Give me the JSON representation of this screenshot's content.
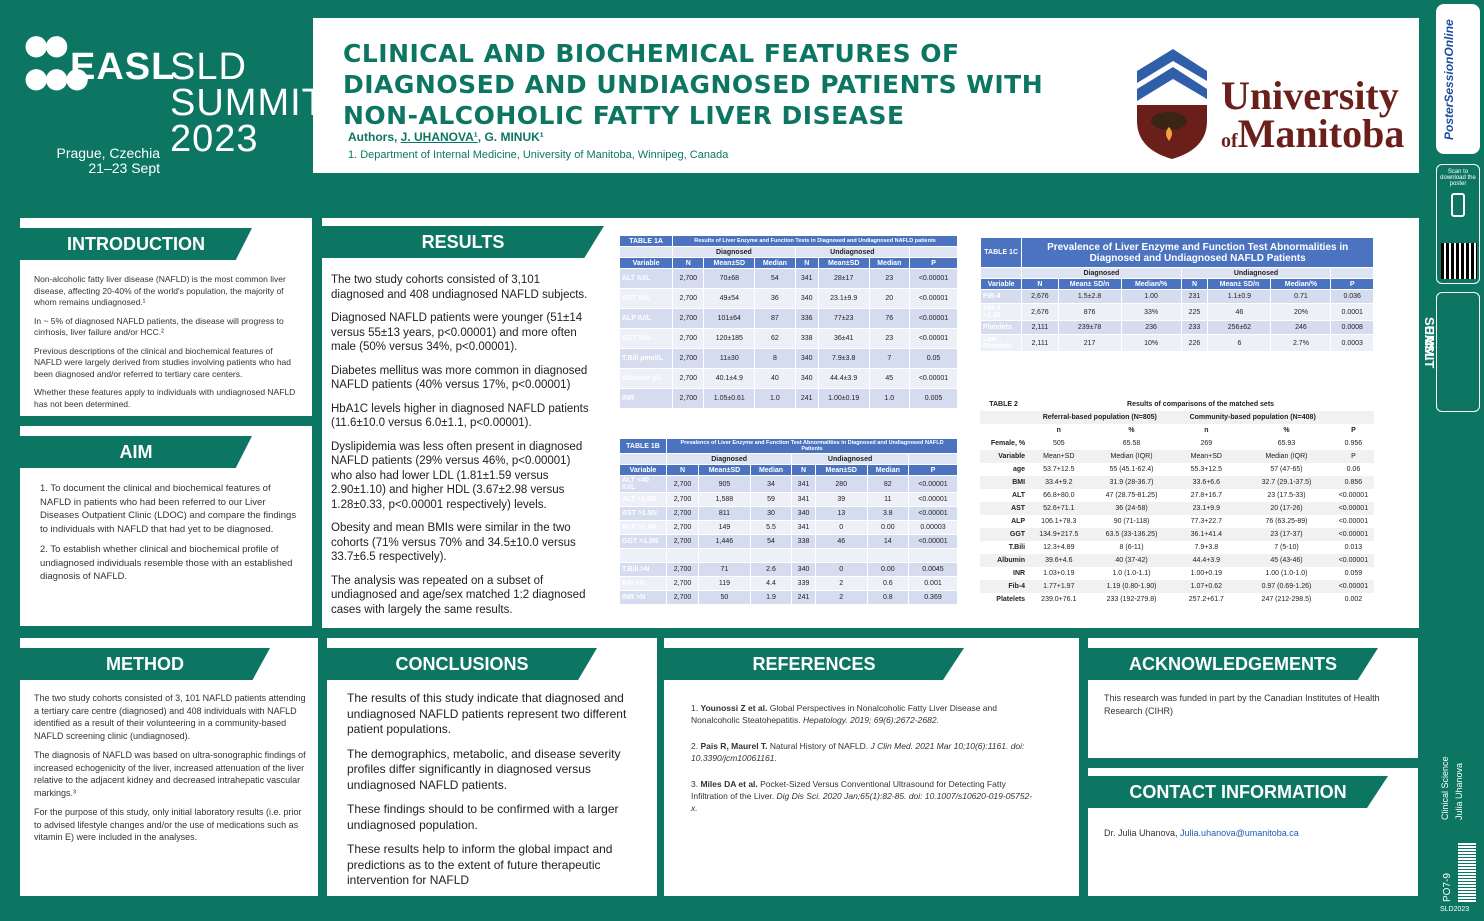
{
  "logo": {
    "word1": "EASL",
    "word2": "SLD",
    "word3": "SUMMIT",
    "year": "2023",
    "city": "Prague, Czechia",
    "dates": "21–23 Sept"
  },
  "header": {
    "title": "CLINICAL AND BIOCHEMICAL FEATURES OF DIAGNOSED AND UNDIAGNOSED PATIENTS WITH NON-ALCOHOLIC FATTY LIVER DISEASE",
    "authors_prefix": "Authors, ",
    "author1": "J. UHANOVA¹",
    "author_sep": ", ",
    "author2": "G. MINUK¹",
    "affiliation": "1. Department of Internal Medicine, University of Manitoba, Winnipeg, Canada",
    "uni_line1": "University",
    "uni_of": "of",
    "uni_line2": "Manitoba"
  },
  "side": {
    "brand": "PosterSessionOnline",
    "scan": "Scan to download the poster",
    "easl": "EASL",
    "summit": "SUMMIT",
    "category": "Clinical Science",
    "author": "Julia Uhanova",
    "code": "PO7-9",
    "event": "SLD2023"
  },
  "intro": {
    "heading": "INTRODUCTION",
    "p1": "Non-alcoholic fatty liver disease (NAFLD) is the most common liver disease, affecting 20-40% of the world's population, the majority of whom remains undiagnosed.¹",
    "p2": "In ~ 5% of diagnosed NAFLD patients, the disease will progress to cirrhosis, liver failure and/or HCC.²",
    "p3": "Previous descriptions of the clinical and biochemical features of NAFLD were largely derived from studies involving patients who had been diagnosed and/or referred to tertiary care centers.",
    "p4": "Whether these features apply to individuals with undiagnosed NAFLD has not been determined."
  },
  "aim": {
    "heading": "AIM",
    "p1": "1. To document the clinical and biochemical features of NAFLD in patients who had been referred to our Liver Diseases Outpatient Clinic (LDOC) and compare the findings to individuals with NAFLD that had yet to be diagnosed.",
    "p2": "2. To establish whether clinical and biochemical profile of undiagnosed  individuals resemble those with an established diagnosis of NAFLD."
  },
  "results": {
    "heading": "RESULTS",
    "p1": "The two study cohorts consisted of 3,101 diagnosed and 408 undiagnosed NAFLD subjects.",
    "p2": "Diagnosed NAFLD patients were younger (51±14 versus 55±13 years, p<0.00001) and more often male (50% versus 34%, p<0.00001).",
    "p3": "Diabetes mellitus was more common in diagnosed NAFLD patients (40% versus 17%, p<0.00001)",
    "p4": "HbA1C levels higher in diagnosed NAFLD patients (11.6±10.0 versus 6.0±1.1, p<0.00001).",
    "p5": "Dyslipidemia was less often present in diagnosed NAFLD patients (29% versus 46%, p<0.00001) who also had lower LDL (1.81±1.59 versus 2.90±1.10) and higher HDL (3.67±2.98 versus 1.28±0.33, p<0.00001 respectively) levels.",
    "p6": "Obesity and mean BMIs were similar in the two cohorts (71% versus 70% and 34.5±10.0 versus 33.7±6.5 respectively).",
    "p7": "The analysis was repeated on a subset of undiagnosed and age/sex matched 1:2 diagnosed cases with largely the same results."
  },
  "table1a": {
    "label": "TABLE 1A",
    "caption": "Results of Liver Enzyme and Function Tests in Diagnosed and Undiagnosed NAFLD patients",
    "group1": "Diagnosed",
    "group2": "Undiagnosed",
    "cols": [
      "Variable",
      "N",
      "Mean±SD",
      "Median",
      "N",
      "Mean±SD",
      "Median",
      "P"
    ],
    "rows": [
      [
        "ALT IU/L",
        "2,700",
        "70±68",
        "54",
        "341",
        "28±17",
        "23",
        "<0.00001"
      ],
      [
        "AST IU/L",
        "2,700",
        "49±54",
        "36",
        "340",
        "23.1±9.9",
        "20",
        "<0.00001"
      ],
      [
        "ALP IU/L",
        "2,700",
        "101±64",
        "87",
        "336",
        "77±23",
        "76",
        "<0.00001"
      ],
      [
        "GGT IU/L",
        "2,700",
        "120±185",
        "62",
        "338",
        "36±41",
        "23",
        "<0.00001"
      ],
      [
        "T.Bili µmol/L",
        "2,700",
        "11±30",
        "8",
        "340",
        "7.9±3.8",
        "7",
        "0.05"
      ],
      [
        "Albumin g/L",
        "2,700",
        "40.1±4.9",
        "40",
        "340",
        "44.4±3.9",
        "45",
        "<0.00001"
      ],
      [
        "INR",
        "2,700",
        "1.05±0.61",
        "1.0",
        "241",
        "1.00±0.19",
        "1.0",
        "0.005"
      ]
    ]
  },
  "table1b": {
    "label": "TABLE 1B",
    "caption": "Prevalence of Liver Enzyme and Function Test Abnormalities in Diagnosed and Undiagnosed NAFLD Patients",
    "group1": "Diagnosed",
    "group2": "Undiagnosed",
    "cols": [
      "Variable",
      "N",
      "Mean±SD",
      "Median",
      "N",
      "Mean±SD",
      "Median",
      "P"
    ],
    "rows": [
      [
        "ALT <40 IU/L",
        "2,700",
        "905",
        "34",
        "341",
        "280",
        "82",
        "<0.00001"
      ],
      [
        "ALT >1.5N",
        "2,700",
        "1,588",
        "59",
        "341",
        "39",
        "11",
        "<0.00001"
      ],
      [
        "AST >1.5N",
        "2,700",
        "811",
        "30",
        "340",
        "13",
        "3.8",
        "<0.00001"
      ],
      [
        "ALP >1.5N",
        "2,700",
        "149",
        "5.5",
        "341",
        "0",
        "0.00",
        "0.00003"
      ],
      [
        "GGT >1.5N",
        "2,700",
        "1,446",
        "54",
        "338",
        "46",
        "14",
        "<0.00001"
      ],
      [
        "",
        "",
        "",
        "",
        "",
        "",
        "",
        ""
      ],
      [
        "T.Bili >N",
        "2,700",
        "71",
        "2.6",
        "340",
        "0",
        "0.00",
        "0.0045"
      ],
      [
        "Alb <N",
        "2,700",
        "119",
        "4.4",
        "339",
        "2",
        "0.6",
        "0.001"
      ],
      [
        "INR >N",
        "2,700",
        "50",
        "1.9",
        "241",
        "2",
        "0.8",
        "0.369"
      ]
    ]
  },
  "table1c": {
    "label": "TABLE 1C",
    "caption": "Prevalence of Liver Enzyme and Function Test Abnormalities in Diagnosed and Undiagnosed NAFLD Patients",
    "group1": "Diagnosed",
    "group2": "Undiagnosed",
    "cols": [
      "Variable",
      "N",
      "Mean± SD/n",
      "Median/%",
      "N",
      "Mean± SD/n",
      "Median/%",
      "P"
    ],
    "rows": [
      [
        "FIB-4",
        "2,676",
        "1.5±2.8",
        "1.00",
        "231",
        "1.1±0.9",
        "0.71",
        "0.036"
      ],
      [
        "FIB-4 >1.35",
        "2,676",
        "876",
        "33%",
        "225",
        "46",
        "20%",
        "0.0001"
      ],
      [
        "Platelets",
        "2,111",
        "239±78",
        "236",
        "233",
        "256±62",
        "246",
        "0.0008"
      ],
      [
        "Low Platelets",
        "2,111",
        "217",
        "10%",
        "226",
        "6",
        "2.7%",
        "0.0003"
      ]
    ]
  },
  "table2": {
    "label": "TABLE 2",
    "caption": "Results of comparisons of the matched sets",
    "group1": "Referral-based population (N=805)",
    "group2": "Community-based  population (N=408)",
    "sub": [
      "n",
      "%",
      "n",
      "%",
      "P"
    ],
    "rows": [
      [
        "Female, %",
        "505",
        "65.58",
        "269",
        "65.93",
        "0.956"
      ],
      [
        "Variable",
        "Mean+SD",
        "Median (IQR)",
        "Mean+SD",
        "Median (IQR)",
        "P"
      ],
      [
        "age",
        "53.7+12.5",
        "55 (45.1-62.4)",
        "55.3+12.5",
        "57 (47-65)",
        "0.06"
      ],
      [
        "BMI",
        "33.4+9.2",
        "31.9 (28-36.7)",
        "33.6+6.6",
        "32.7 (29.1-37.5)",
        "0.856"
      ],
      [
        "ALT",
        "66.8+80.0",
        "47 (28.75-81.25)",
        "27.8+16.7",
        "23 (17.5-33)",
        "<0.00001"
      ],
      [
        "AST",
        "52.6+71.1",
        "36 (24-58)",
        "23.1+9.9",
        "20 (17-26)",
        "<0.00001"
      ],
      [
        "ALP",
        "106.1+78.3",
        "90 (71-118)",
        "77.3+22.7",
        "76 (63.25-89)",
        "<0.00001"
      ],
      [
        "GGT",
        "134.9+217.5",
        "63.5 (33-136.25)",
        "36.1+41.4",
        "23 (17-37)",
        "<0.00001"
      ],
      [
        "T.Bili",
        "12.3+4.89",
        "8 (6-11)",
        "7.9+3.8",
        "7 (5-10)",
        "0.013"
      ],
      [
        "Albumin",
        "39.6+4.6",
        "40 (37-42)",
        "44.4+3.9",
        "45 (43-46)",
        "<0.00001"
      ],
      [
        "INR",
        "1.03+0.19",
        "1.0 (1.0-1.1)",
        "1.00+0.19",
        "1.00 (1.0-1.0)",
        "0.059"
      ],
      [
        "Fib-4",
        "1.77+1.97",
        "1.19 (0.80-1.90)",
        "1.07+0.62",
        "0.97 (0.69-1.26)",
        "<0.00001"
      ],
      [
        "Platelets",
        "239.0+76.1",
        "233 (192-279.8)",
        "257.2+61.7",
        "247 (212-298.5)",
        "0.002"
      ]
    ]
  },
  "method": {
    "heading": "METHOD",
    "p1": "The two study cohorts consisted of 3, 101 NAFLD patients attending a tertiary care centre (diagnosed) and 408 individuals with NAFLD identified as a result of their volunteering in a community-based NAFLD screening clinic (undiagnosed).",
    "p2": "The diagnosis of NAFLD was based on ultra-sonographic findings of increased echogenicity of the liver, increased attenuation of the liver relative to the adjacent kidney and decreased intrahepatic vascular markings.³",
    "p3": "For the purpose of this study, only initial laboratory results (i.e. prior to advised lifestyle changes and/or the use of medications such as vitamin E) were included in the analyses."
  },
  "conclusions": {
    "heading": "CONCLUSIONS",
    "p1": "The results of this study indicate that diagnosed and undiagnosed NAFLD patients represent two different patient populations.",
    "p2": "The demographics, metabolic, and disease severity profiles differ significantly in diagnosed versus undiagnosed NAFLD patients.",
    "p3": "These findings should to be confirmed with a larger undiagnosed population.",
    "p4": "These results help to inform the global impact and predictions as to the extent of future therapeutic intervention for NAFLD"
  },
  "references": {
    "heading": "REFERENCES",
    "r1a": "1. ",
    "r1b": "Younossi Z et al.",
    "r1c": " Global Perspectives in Nonalcoholic Fatty Liver Disease and Nonalcoholic Steatohepatitis. ",
    "r1d": "Hepatology. 2019; 69(6):2672-2682.",
    "r2a": "2. ",
    "r2b": "Pais R, Maurel T.",
    "r2c": " Natural History of NAFLD. ",
    "r2d": "J Clin Med. 2021 Mar 10;10(6):1161. doi: 10.3390/jcm10061161.",
    "r3a": "3. ",
    "r3b": "Miles DA et al.",
    "r3c": " Pocket-Sized Versus Conventional Ultrasound for Detecting Fatty Infiltration of the Liver. ",
    "r3d": "Dig Dis Sci. 2020 Jan;65(1):82-85. doi: 10.1007/s10620-019-05752-x."
  },
  "ack": {
    "heading": "ACKNOWLEDGEMENTS",
    "text": "This research was funded in part by the Canadian Institutes of Health Research (CIHR)"
  },
  "contact": {
    "heading": "CONTACT INFORMATION",
    "prefix": "Dr. Julia Uhanova, ",
    "email": "Julia.uhanova@umanitoba.ca"
  }
}
